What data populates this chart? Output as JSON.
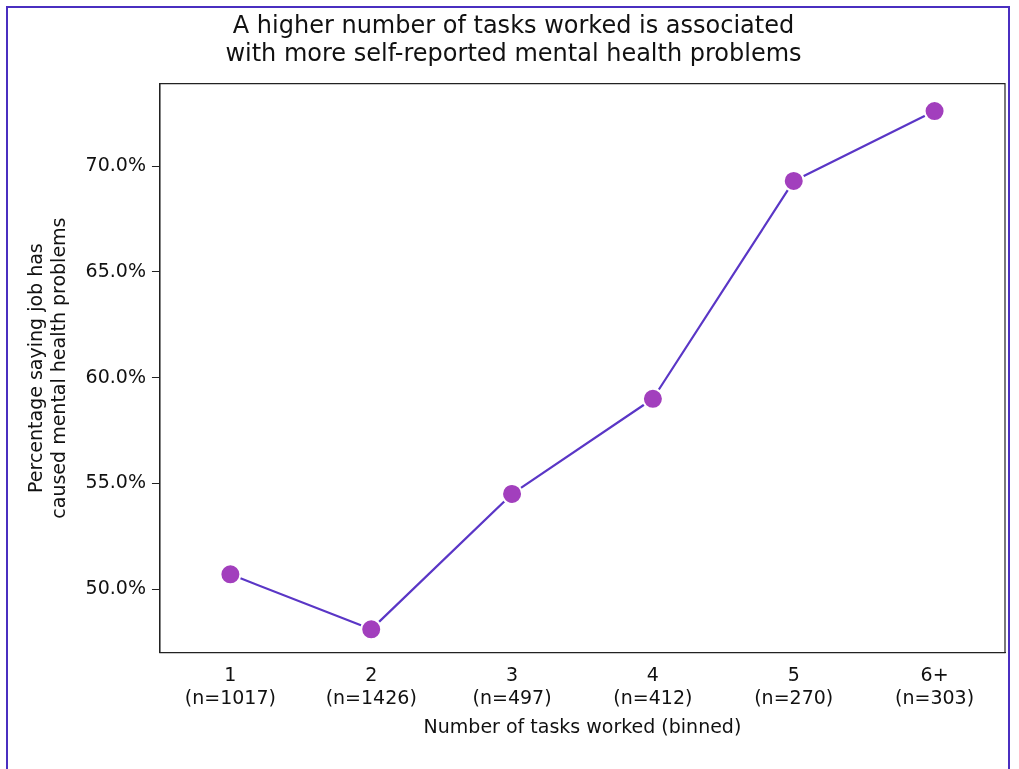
{
  "chart_data": {
    "type": "line",
    "title": "A higher number of tasks worked is associated\nwith more self-reported mental health problems",
    "xlabel": "Number of tasks worked (binned)",
    "ylabel": "Percentage saying job has\ncaused mental health problems",
    "categories": [
      "1\n(n=1017)",
      "2\n(n=1426)",
      "3\n(n=497)",
      "4\n(n=412)",
      "5\n(n=270)",
      "6+\n(n=303)"
    ],
    "series": [
      {
        "color": "#a23fbd",
        "values": [
          50.7,
          48.1,
          54.5,
          59.0,
          69.3,
          72.6
        ]
      }
    ],
    "ylim": [
      47.0,
      73.9
    ],
    "yticks": [
      {
        "value": 50,
        "label": "50.0%"
      },
      {
        "value": 55,
        "label": "55.0%"
      },
      {
        "value": 60,
        "label": "60.0%"
      },
      {
        "value": 65,
        "label": "65.0%"
      },
      {
        "value": 70,
        "label": "70.0%"
      }
    ],
    "grid": false,
    "legend": false,
    "marker": "circle",
    "line_style": "solid"
  }
}
